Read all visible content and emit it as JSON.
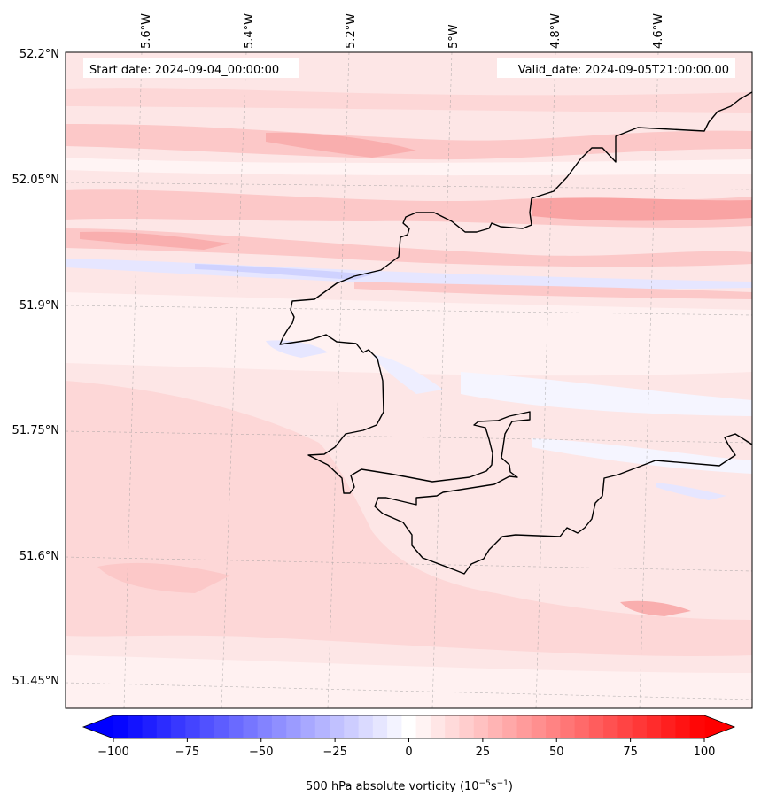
{
  "map": {
    "start_date_text": "Start date: 2024-09-04_00:00:00",
    "valid_date_text": "Valid_date: 2024-09-05T21:00:00.00",
    "lon_ticks": [
      "5.6°W",
      "5.4°W",
      "5.2°W",
      "5°W",
      "4.8°W",
      "4.6°W"
    ],
    "lat_ticks": [
      "52.2°N",
      "52.05°N",
      "51.9°N",
      "51.75°N",
      "51.6°N",
      "51.45°N"
    ],
    "extent": {
      "lon_range": [
        "5.75°W",
        "4.45°W"
      ],
      "lat_range": [
        "51.42°N",
        "52.2°N"
      ]
    },
    "gridlines": true,
    "field": "500 hPa absolute vorticity",
    "coastline_color": "#000000"
  },
  "colorbar": {
    "label_main": "500 hPa absolute vorticity (10",
    "label_exp1": "−5",
    "label_mid": "s",
    "label_exp2": "−1",
    "label_end": ")",
    "ticks": [
      "−100",
      "−75",
      "−50",
      "−25",
      "0",
      "25",
      "50",
      "75",
      "100"
    ],
    "min": -100,
    "max": 100,
    "levels": 41,
    "extend": "both",
    "colormap": "bwr",
    "color_low": "#0000ff",
    "color_mid": "#ffffff",
    "color_high": "#ff0000"
  }
}
